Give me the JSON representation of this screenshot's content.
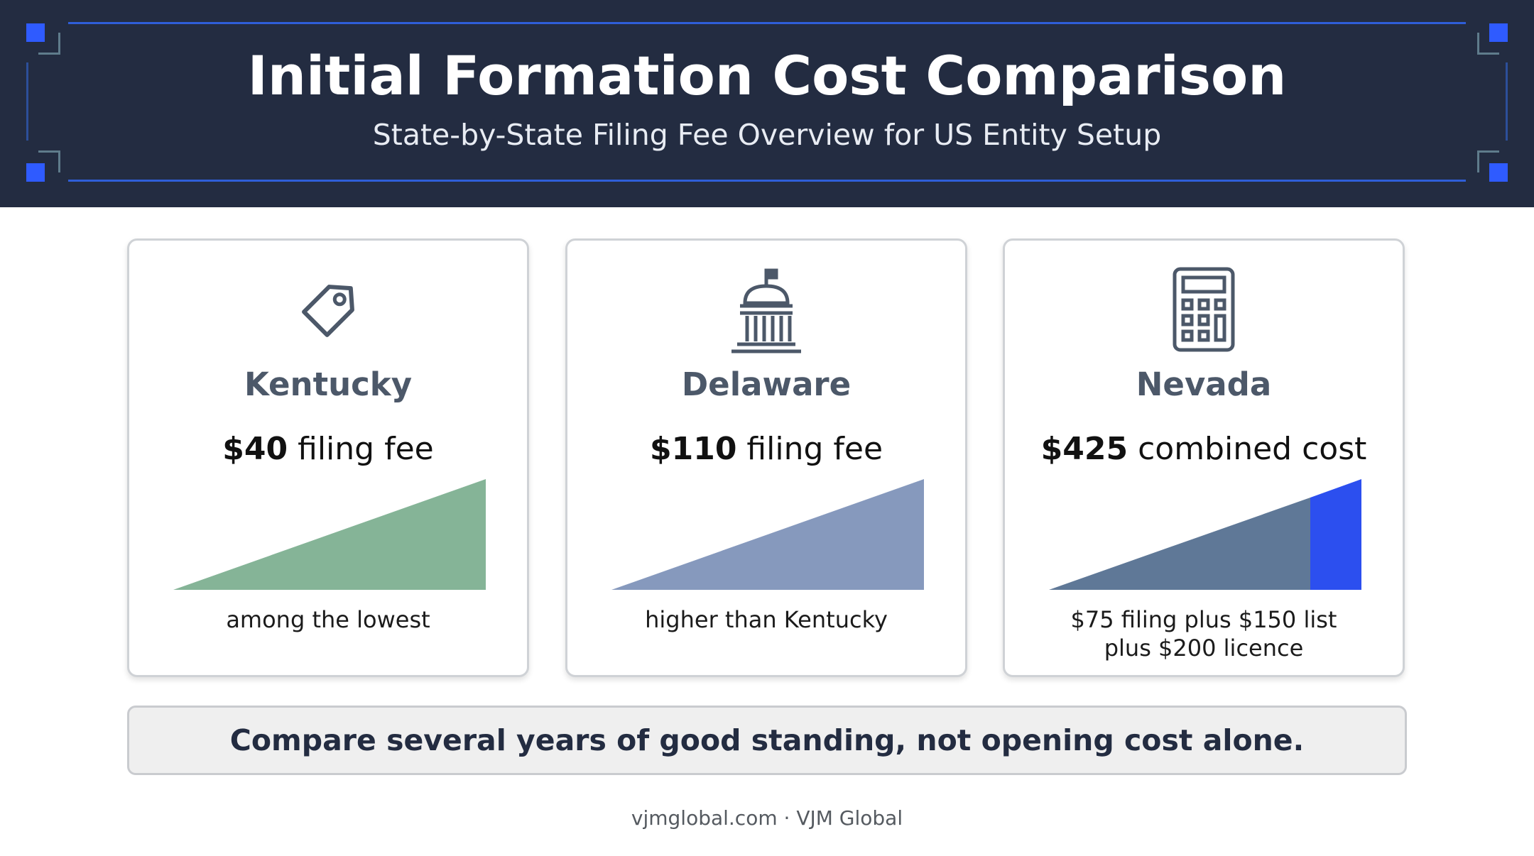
{
  "header": {
    "title": "Initial Formation Cost Comparison",
    "subtitle": "State-by-State Filing Fee Overview for US Entity Setup"
  },
  "cards": [
    {
      "icon": "price-tag-icon",
      "state": "Kentucky",
      "amount": "$40",
      "fee_label": " filing fee",
      "note": "among the lowest",
      "color": "#85b497"
    },
    {
      "icon": "capitol-building-icon",
      "state": "Delaware",
      "amount": "$110",
      "fee_label": " filing fee",
      "note": "higher than Kentucky",
      "color": "#8699bd"
    },
    {
      "icon": "calculator-icon",
      "state": "Nevada",
      "amount": "$425",
      "fee_label": " combined cost",
      "note_line1": "$75 filing plus $150 list",
      "note_line2": "plus $200 licence",
      "color": "#5f7897",
      "accent": "#2c4fef"
    }
  ],
  "callout": "Compare several years of good standing, not opening cost alone.",
  "footer": "vjmglobal.com · VJM Global"
}
